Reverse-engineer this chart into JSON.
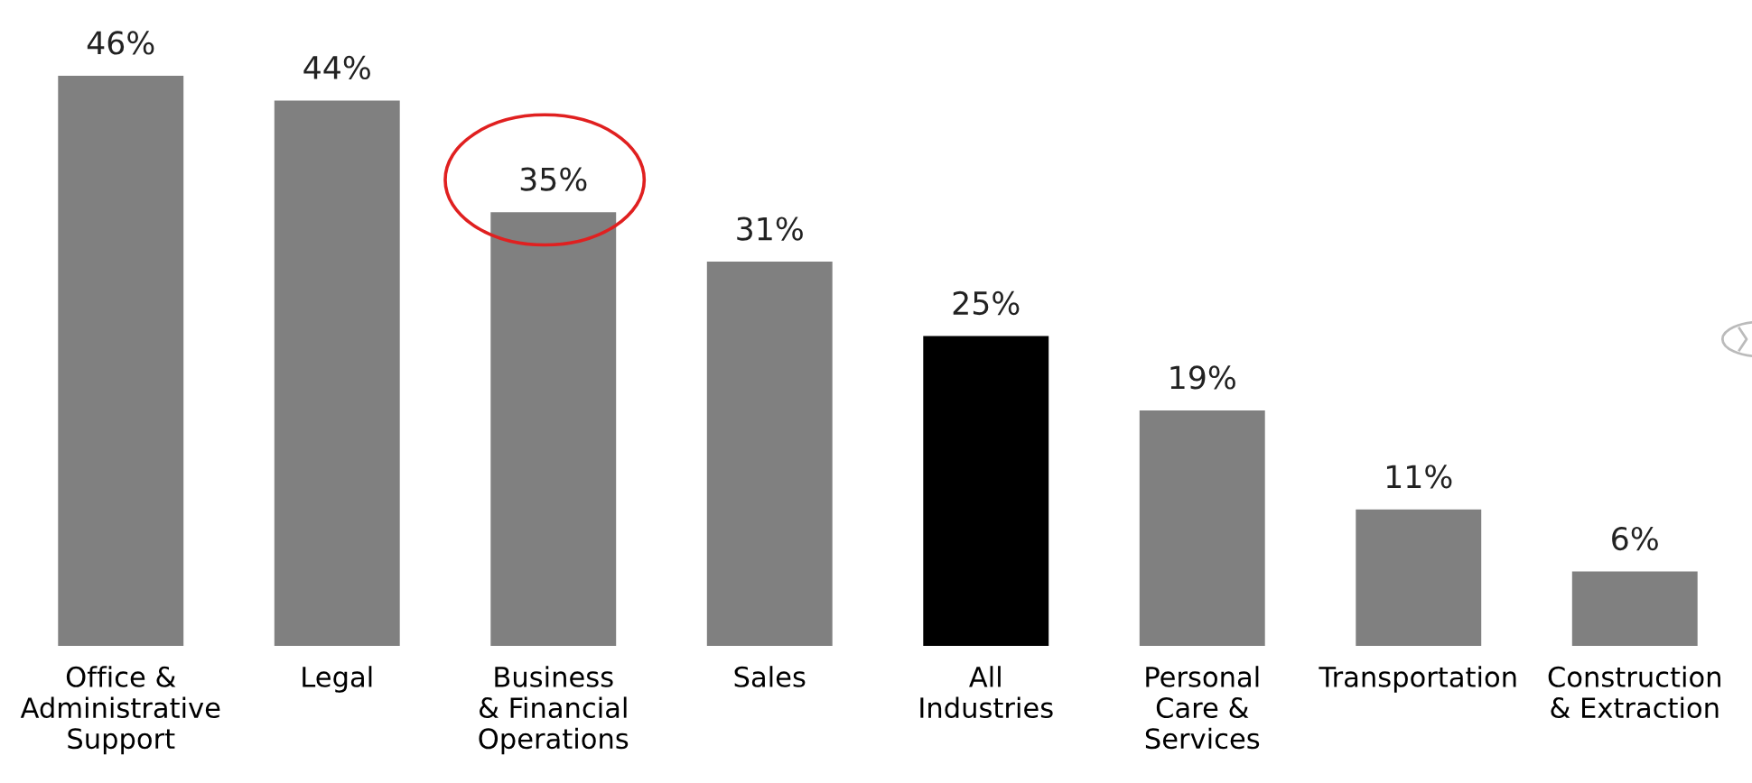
{
  "chart_data": {
    "type": "bar",
    "categories": [
      "Office &\nAdministrative\nSupport",
      "Legal",
      "Business\n& Financial\nOperations",
      "Sales",
      "All\nIndustries",
      "Personal\nCare &\nServices",
      "Transportation",
      "Construction\n& Extraction"
    ],
    "values": [
      46,
      44,
      35,
      31,
      25,
      19,
      11,
      6
    ],
    "colors": [
      "#808080",
      "#808080",
      "#808080",
      "#808080",
      "#000000",
      "#808080",
      "#808080",
      "#808080"
    ],
    "value_labels": [
      "46%",
      "44%",
      "35%",
      "31%",
      "25%",
      "19%",
      "11%",
      "6%"
    ],
    "tick_labels": "x",
    "grid": false,
    "legend": false
  }
}
